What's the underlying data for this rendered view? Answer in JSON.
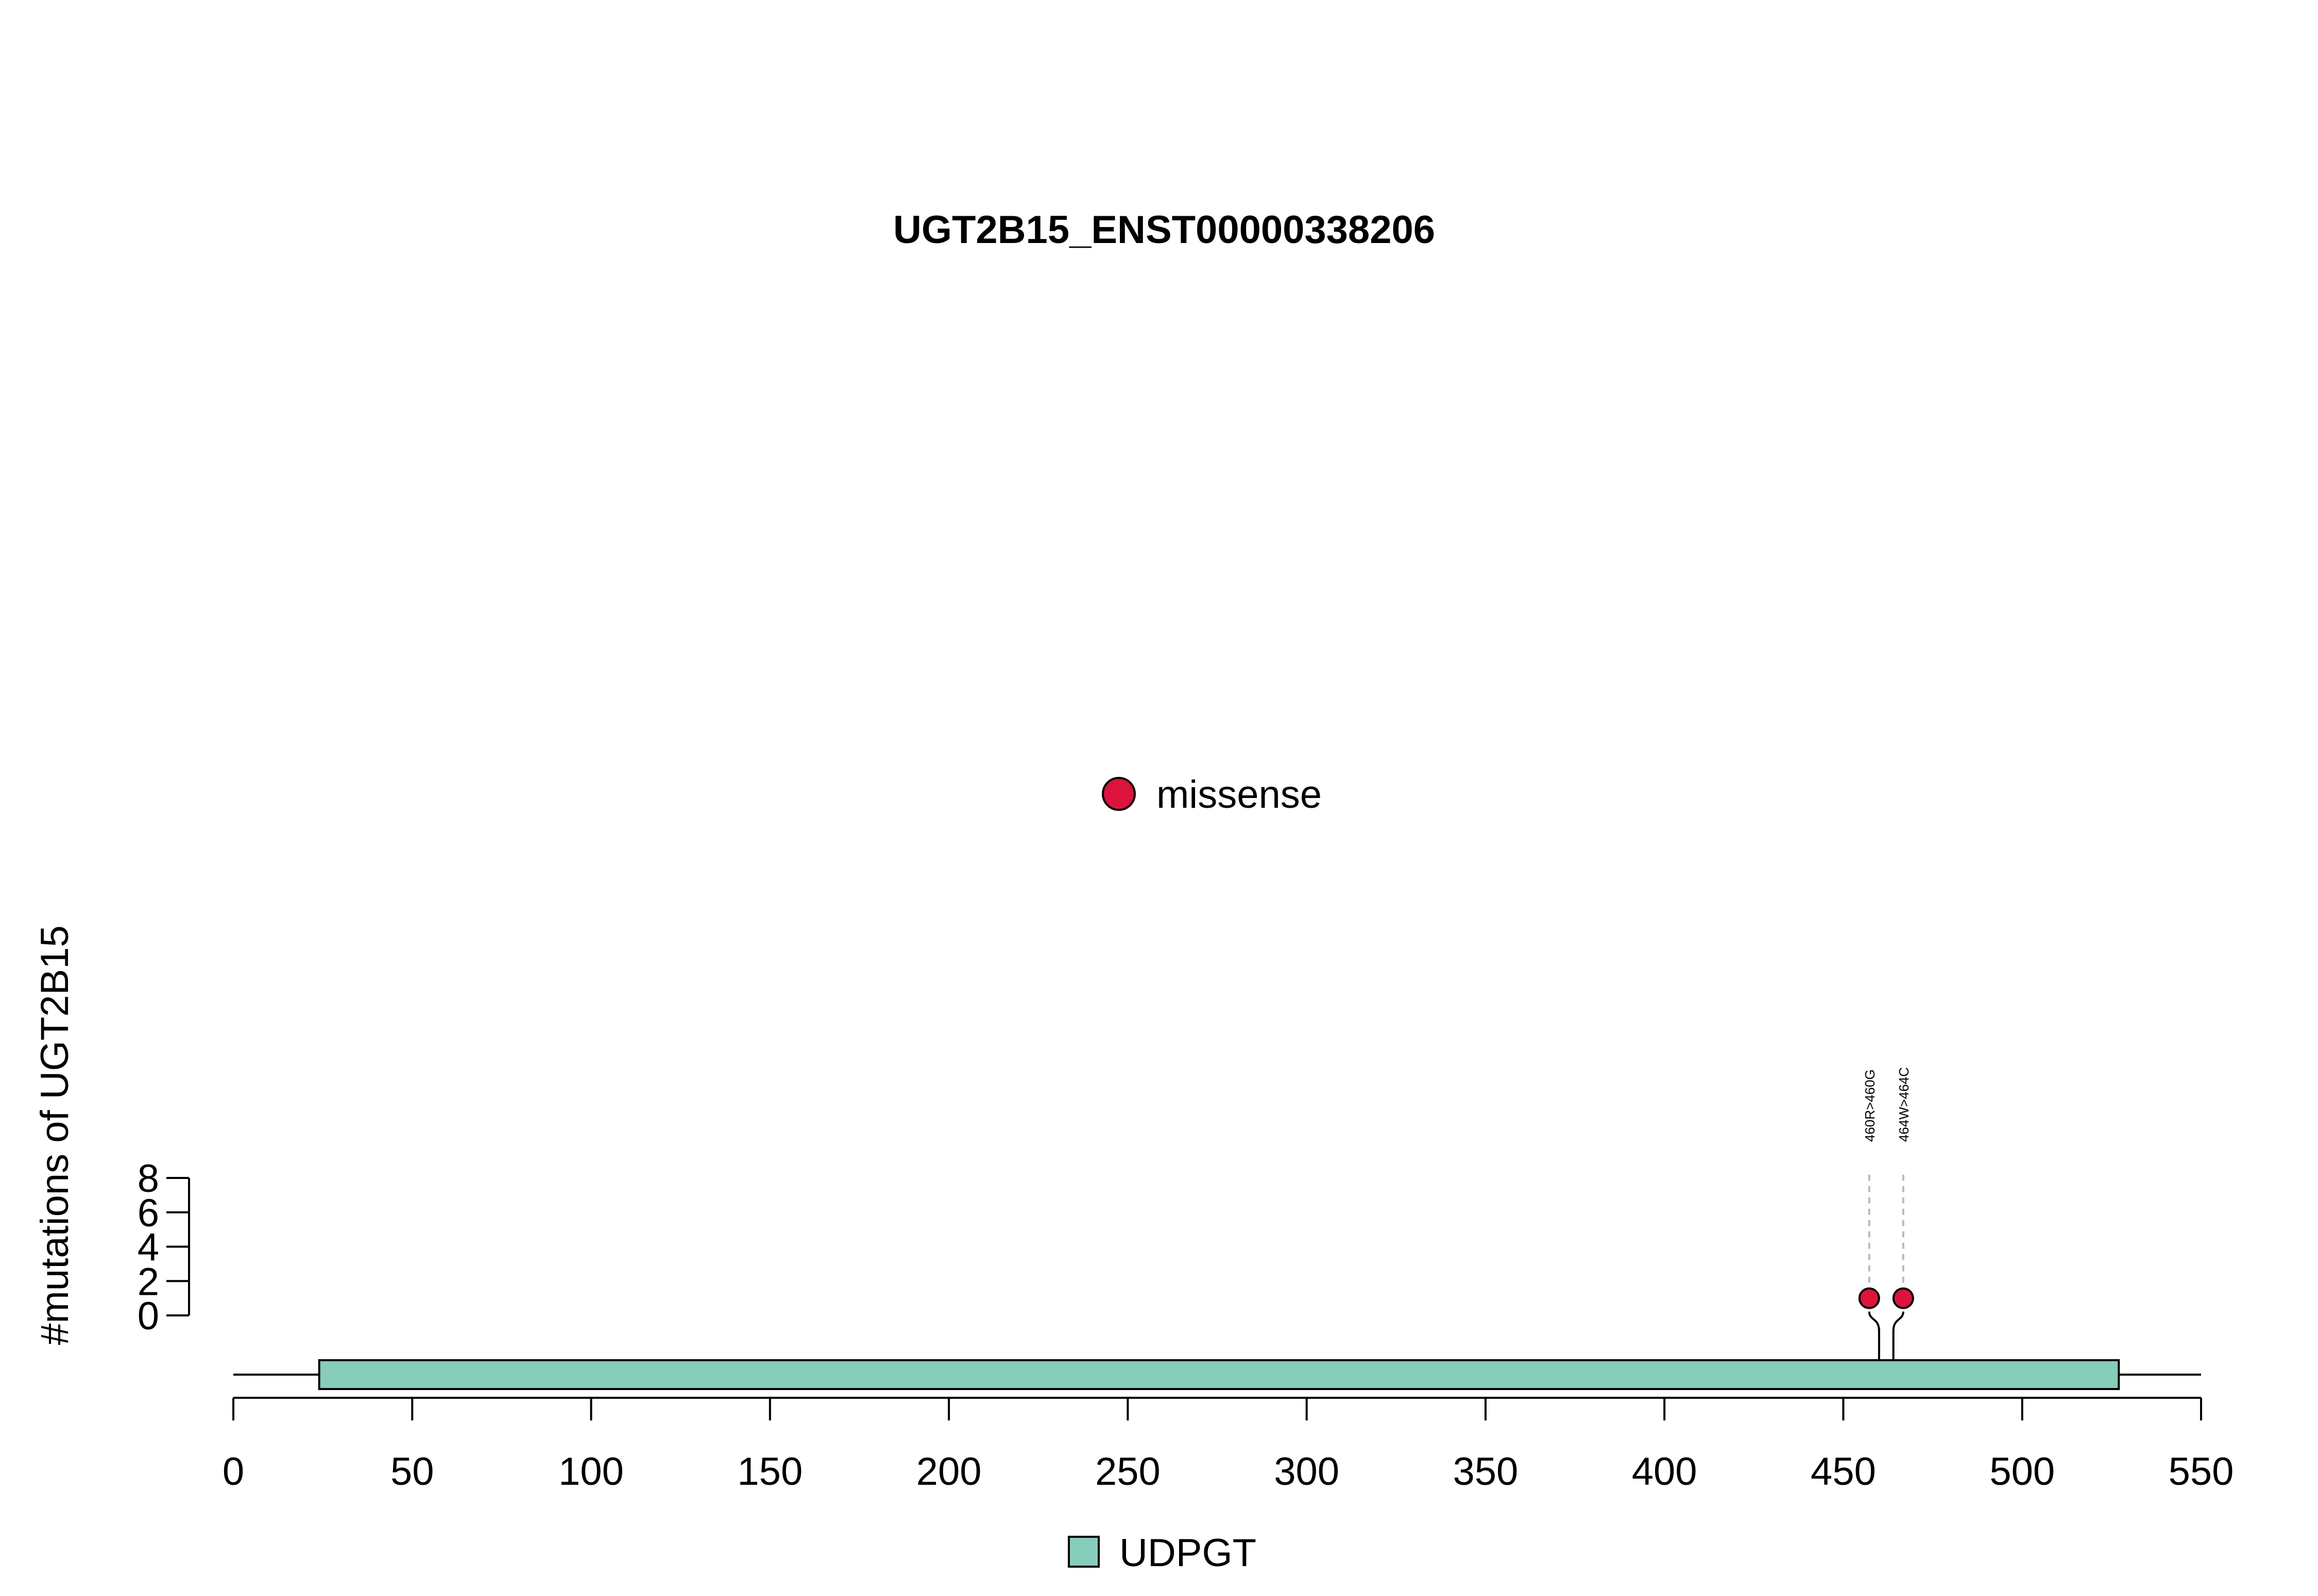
{
  "chart_data": {
    "type": "lollipop",
    "title": "UGT2B15_ENST00000338206",
    "ylabel": "#mutations of UGT2B15",
    "protein_length": 550,
    "xlim": [
      0,
      550
    ],
    "x_ticks": [
      0,
      50,
      100,
      150,
      200,
      250,
      300,
      350,
      400,
      450,
      500,
      550
    ],
    "ylim": [
      0,
      8
    ],
    "y_ticks": [
      0,
      2,
      4,
      6,
      8
    ],
    "domains": [
      {
        "name": "UDPGT",
        "start": 24,
        "end": 527,
        "color": "#88CCBB"
      }
    ],
    "mutations": [
      {
        "label": "460R>460G",
        "position": 460,
        "count": 1,
        "type": "missense"
      },
      {
        "label": "464W>464C",
        "position": 464,
        "count": 1,
        "type": "missense"
      }
    ],
    "mutation_legend": [
      {
        "type": "missense",
        "label": "missense",
        "color": "#DC143C"
      }
    ],
    "domain_legend": [
      {
        "label": "UDPGT",
        "color": "#88CCBB"
      }
    ],
    "colors": {
      "missense": "#DC143C",
      "domain": "#88CCBB",
      "guide_line": "#BBBBBB"
    }
  }
}
